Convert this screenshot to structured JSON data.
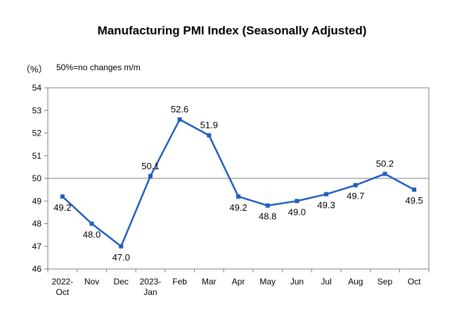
{
  "chart_data": {
    "type": "line",
    "title": "Manufacturing PMI Index (Seasonally Adjusted)",
    "unit_label": "（%）",
    "reference_note": "50%=no changes m/m",
    "reference_line": 50,
    "ylim": [
      46,
      54
    ],
    "yticks": [
      46,
      47,
      48,
      49,
      50,
      51,
      52,
      53,
      54
    ],
    "grid": false,
    "categories": [
      [
        "2022-",
        "Oct"
      ],
      [
        "Nov"
      ],
      [
        "Dec"
      ],
      [
        "2023-",
        "Jan"
      ],
      [
        "Feb"
      ],
      [
        "Mar"
      ],
      [
        "Apr"
      ],
      [
        "May"
      ],
      [
        "Jun"
      ],
      [
        "Jul"
      ],
      [
        "Aug"
      ],
      [
        "Sep"
      ],
      [
        "Oct"
      ]
    ],
    "values": [
      49.2,
      48.0,
      47.0,
      50.1,
      52.6,
      51.9,
      49.2,
      48.8,
      49.0,
      49.3,
      49.7,
      50.2,
      49.5
    ],
    "data_labels": [
      "49.2",
      "48.0",
      "47.0",
      "50.1",
      "52.6",
      "51.9",
      "49.2",
      "48.8",
      "49.0",
      "49.3",
      "49.7",
      "50.2",
      "49.5"
    ],
    "colors": {
      "series": "#1f5fbf",
      "axis": "#7f7f7f",
      "reference": "#7f7f7f"
    }
  }
}
